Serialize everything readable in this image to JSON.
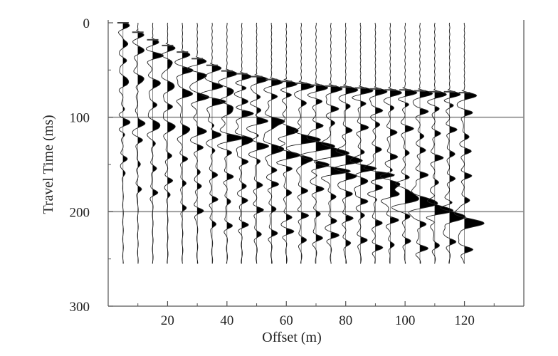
{
  "chart_data": {
    "type": "seismic wiggle trace",
    "title": "",
    "xlabel": "Offset (m)",
    "ylabel": "Travel Time (ms)",
    "xlim": [
      0,
      140
    ],
    "ylim": [
      300,
      0
    ],
    "x_ticks": [
      20,
      40,
      60,
      80,
      100,
      120
    ],
    "y_ticks": [
      0,
      100,
      200,
      300
    ],
    "x_tick_labels": [
      "20",
      "40",
      "60",
      "80",
      "100",
      "120"
    ],
    "y_tick_labels": [
      "0",
      "100",
      "200",
      "300"
    ],
    "reference_lines_ms": [
      100,
      200
    ],
    "trace_offsets_m": [
      5,
      10,
      15,
      20,
      25,
      30,
      35,
      40,
      45,
      50,
      55,
      60,
      65,
      70,
      75,
      80,
      85,
      90,
      95,
      100,
      105,
      110,
      115,
      120
    ],
    "trace_end_ms": 255,
    "first_arrivals": {
      "offset_m": [
        5,
        10,
        15,
        20,
        25,
        30,
        35,
        40,
        45,
        50,
        55,
        60,
        65,
        70,
        75,
        80,
        85,
        90,
        95,
        100,
        105,
        110,
        115,
        120
      ],
      "time_ms": [
        0,
        10,
        18,
        24,
        31,
        38,
        45,
        51,
        54,
        57,
        60,
        62,
        64,
        66,
        67,
        68,
        69,
        70,
        71,
        71,
        72,
        73,
        73,
        74
      ]
    },
    "reflection_events": [
      {
        "t0_ms": 20,
        "velocity_m_per_ms": 0.55
      },
      {
        "t0_ms": 60,
        "velocity_m_per_ms": 0.6
      },
      {
        "t0_ms": 105,
        "velocity_m_per_ms": 0.65
      }
    ],
    "grid": false,
    "colors": {
      "trace": "#222222",
      "fill": "#000000",
      "reference_line": "#8a8a8a",
      "axis": "#555555"
    }
  }
}
